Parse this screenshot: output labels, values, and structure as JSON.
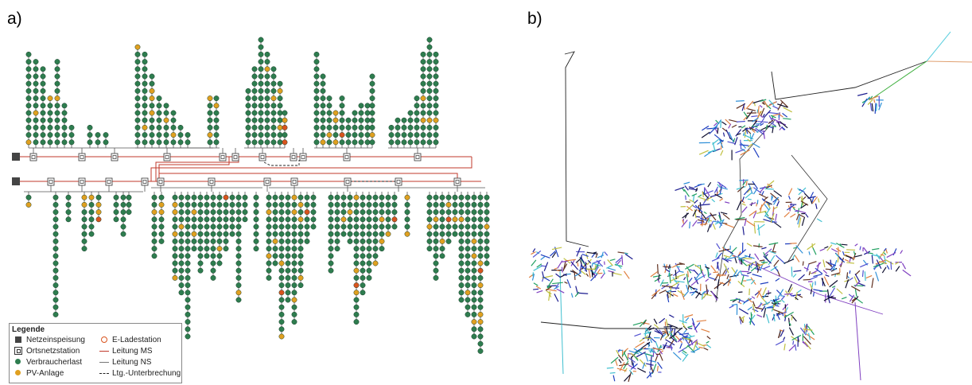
{
  "panels": {
    "a": "a)",
    "b": "b)"
  },
  "legend": {
    "title": "Legende",
    "items": [
      {
        "label": "Netzeinspeisung",
        "icon": "square-feed-icon"
      },
      {
        "label": "E-Ladestation",
        "icon": "ev-charger-icon"
      },
      {
        "label": "Ortsnetzstation",
        "icon": "substation-icon"
      },
      {
        "label": "Leitung MS",
        "icon": "mv-line-icon"
      },
      {
        "label": "Verbraucherlast",
        "icon": "consumer-load-icon"
      },
      {
        "label": "Leitung NS",
        "icon": "lv-line-icon"
      },
      {
        "label": "PV-Anlage",
        "icon": "pv-icon"
      },
      {
        "label": "Ltg.-Unterbrechung",
        "icon": "line-interruption-icon"
      }
    ]
  },
  "colors": {
    "mv_line": "#c0392b",
    "lv_line": "#555555",
    "consumer": "#2e7d4f",
    "pv": "#e0a020",
    "ev": "#d9541e",
    "feed": "#444444"
  }
}
